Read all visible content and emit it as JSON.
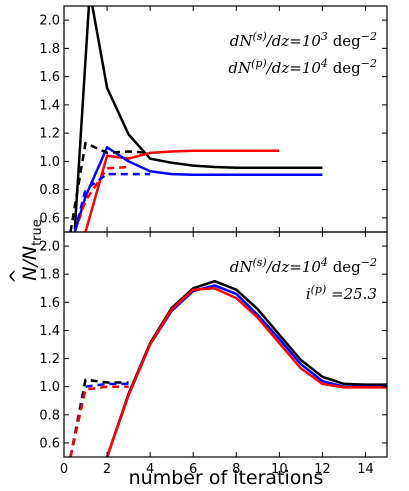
{
  "figure": {
    "xlabel": "number of iterations",
    "ylabel_main": "N",
    "ylabel_hat": "^",
    "ylabel_div": "/N",
    "ylabel_sub": "true"
  },
  "chart_data": [
    {
      "type": "line",
      "panel": "top",
      "xlim": [
        0,
        15
      ],
      "ylim": [
        0.5,
        2.1
      ],
      "xticks": [
        0,
        2,
        4,
        6,
        8,
        10,
        12,
        14
      ],
      "yticks": [
        0.6,
        0.8,
        1.0,
        1.2,
        1.4,
        1.6,
        1.8,
        2.0
      ],
      "grid": false,
      "annotations": [
        {
          "lhs": "dN",
          "sup": "(s)",
          "mid": "/dz",
          "rhs": "=10",
          "exp": "3",
          "unit": " deg",
          "unit_exp": "−2"
        },
        {
          "lhs": "dN",
          "sup": "(p)",
          "mid": "/dz",
          "rhs": "=10",
          "exp": "4",
          "unit": " deg",
          "unit_exp": "−2"
        }
      ],
      "series": [
        {
          "color": "#000000",
          "style": "solid",
          "x": [
            0.5,
            1.2,
            2,
            3,
            4,
            5,
            6,
            7,
            8,
            9,
            10,
            11,
            12
          ],
          "y": [
            0.52,
            2.2,
            1.52,
            1.19,
            1.02,
            0.99,
            0.97,
            0.96,
            0.955,
            0.955,
            0.955,
            0.955,
            0.955
          ]
        },
        {
          "color": "#ff0000",
          "style": "solid",
          "x": [
            1,
            2,
            3,
            4,
            5,
            6,
            7,
            8,
            9,
            10
          ],
          "y": [
            0.5,
            1.04,
            1.02,
            1.06,
            1.07,
            1.075,
            1.075,
            1.075,
            1.075,
            1.075
          ]
        },
        {
          "color": "#0000ff",
          "style": "solid",
          "x": [
            0.5,
            1,
            2,
            3,
            4,
            5,
            6,
            7,
            8,
            9,
            10,
            11,
            12
          ],
          "y": [
            0.5,
            0.75,
            1.1,
            1.0,
            0.93,
            0.91,
            0.905,
            0.905,
            0.905,
            0.905,
            0.905,
            0.905,
            0.905
          ]
        },
        {
          "color": "#000000",
          "style": "dashed",
          "x": [
            0.3,
            1,
            2,
            3,
            4
          ],
          "y": [
            0.5,
            1.13,
            1.06,
            1.07,
            1.06
          ]
        },
        {
          "color": "#ff0000",
          "style": "dashed",
          "x": [
            0.5,
            1,
            2,
            3
          ],
          "y": [
            0.5,
            0.72,
            0.95,
            0.96
          ]
        },
        {
          "color": "#0000ff",
          "style": "dashed",
          "x": [
            0.5,
            1,
            2,
            3,
            4
          ],
          "y": [
            0.5,
            0.8,
            0.91,
            0.91,
            0.91
          ]
        }
      ]
    },
    {
      "type": "line",
      "panel": "bottom",
      "xlim": [
        0,
        15
      ],
      "ylim": [
        0.5,
        2.1
      ],
      "xticks": [
        0,
        2,
        4,
        6,
        8,
        10,
        12,
        14
      ],
      "yticks": [
        0.6,
        0.8,
        1.0,
        1.2,
        1.4,
        1.6,
        1.8,
        2.0
      ],
      "grid": false,
      "annotations": [
        {
          "lhs": "dN",
          "sup": "(s)",
          "mid": "/dz",
          "rhs": "=10",
          "exp": "4",
          "unit": " deg",
          "unit_exp": "−2"
        },
        {
          "lhs": "i",
          "sup": "(p)",
          "mid": "",
          "rhs": " =25.3",
          "exp": "",
          "unit": "",
          "unit_exp": ""
        }
      ],
      "series": [
        {
          "color": "#000000",
          "style": "solid",
          "x": [
            2,
            3,
            4,
            5,
            6,
            7,
            8,
            9,
            10,
            11,
            12,
            13,
            14,
            15
          ],
          "y": [
            0.5,
            0.95,
            1.31,
            1.56,
            1.7,
            1.75,
            1.69,
            1.55,
            1.37,
            1.19,
            1.07,
            1.02,
            1.015,
            1.015
          ]
        },
        {
          "color": "#0000ff",
          "style": "solid",
          "x": [
            2,
            3,
            4,
            5,
            6,
            7,
            8,
            9,
            10,
            11,
            12,
            13,
            14,
            15
          ],
          "y": [
            0.5,
            0.94,
            1.3,
            1.54,
            1.68,
            1.72,
            1.66,
            1.51,
            1.34,
            1.16,
            1.04,
            1.0,
            1.0,
            1.0
          ]
        },
        {
          "color": "#ff0000",
          "style": "solid",
          "x": [
            2,
            3,
            4,
            5,
            6,
            7,
            8,
            9,
            10,
            11,
            12,
            13,
            14,
            15
          ],
          "y": [
            0.5,
            0.94,
            1.3,
            1.55,
            1.69,
            1.7,
            1.63,
            1.49,
            1.31,
            1.13,
            1.02,
            0.995,
            0.995,
            0.995
          ]
        },
        {
          "color": "#000000",
          "style": "dashed",
          "x": [
            0.3,
            1,
            2,
            3
          ],
          "y": [
            0.5,
            1.05,
            1.03,
            1.03
          ]
        },
        {
          "color": "#0000ff",
          "style": "dashed",
          "x": [
            0.3,
            1,
            2,
            3
          ],
          "y": [
            0.5,
            1.0,
            1.02,
            1.02
          ]
        },
        {
          "color": "#ff0000",
          "style": "dashed",
          "x": [
            0.3,
            1,
            2,
            3
          ],
          "y": [
            0.5,
            0.98,
            1.0,
            1.0
          ]
        }
      ]
    }
  ]
}
